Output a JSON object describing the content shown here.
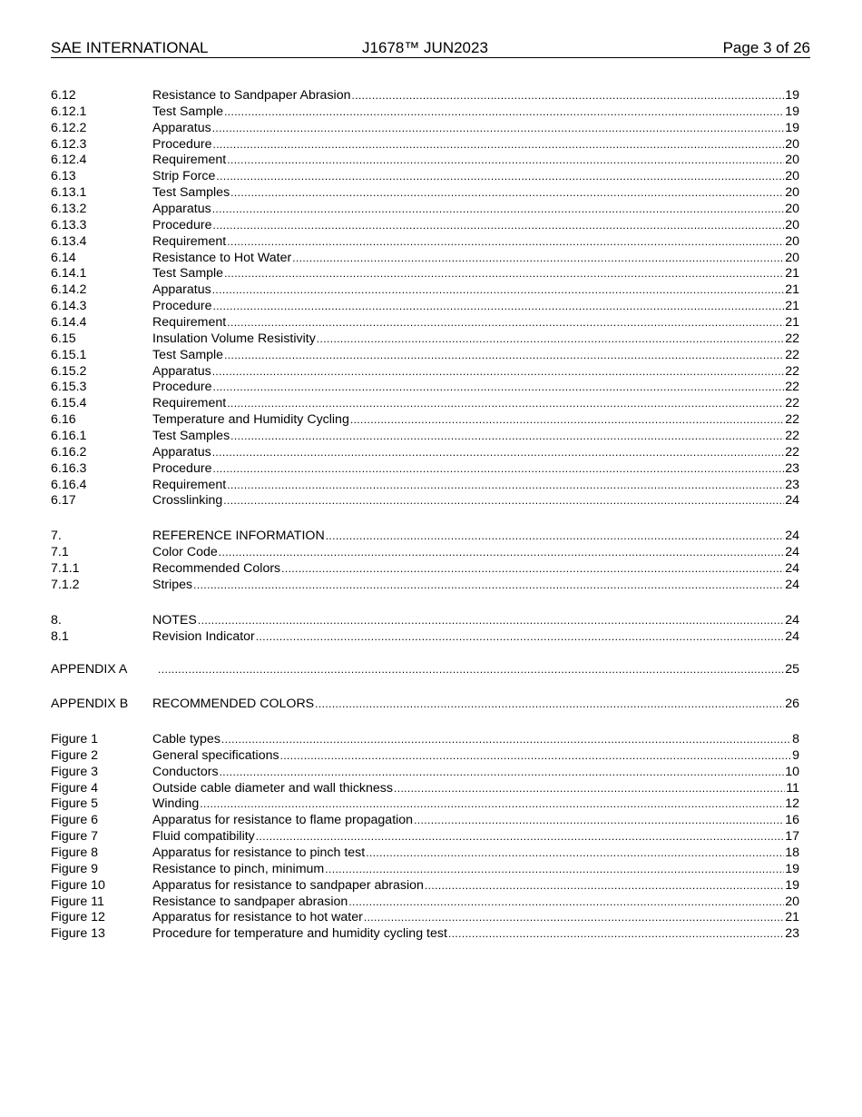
{
  "header": {
    "left": "SAE INTERNATIONAL",
    "center": "J1678™ JUN2023",
    "right": "Page 3 of 26"
  },
  "toc": [
    [
      {
        "num": "6.12",
        "title": "Resistance to Sandpaper Abrasion",
        "page": "19"
      },
      {
        "num": "6.12.1",
        "title": "Test Sample",
        "page": "19"
      },
      {
        "num": "6.12.2",
        "title": "Apparatus",
        "page": "19"
      },
      {
        "num": "6.12.3",
        "title": "Procedure",
        "page": "20"
      },
      {
        "num": "6.12.4",
        "title": "Requirement",
        "page": "20"
      },
      {
        "num": "6.13",
        "title": "Strip Force",
        "page": "20"
      },
      {
        "num": "6.13.1",
        "title": "Test Samples",
        "page": "20"
      },
      {
        "num": "6.13.2",
        "title": "Apparatus",
        "page": "20"
      },
      {
        "num": "6.13.3",
        "title": "Procedure",
        "page": "20"
      },
      {
        "num": "6.13.4",
        "title": "Requirement",
        "page": "20"
      },
      {
        "num": "6.14",
        "title": "Resistance to Hot Water",
        "page": "20"
      },
      {
        "num": "6.14.1",
        "title": "Test Sample",
        "page": "21"
      },
      {
        "num": "6.14.2",
        "title": "Apparatus",
        "page": "21"
      },
      {
        "num": "6.14.3",
        "title": "Procedure",
        "page": "21"
      },
      {
        "num": "6.14.4",
        "title": "Requirement",
        "page": "21"
      },
      {
        "num": "6.15",
        "title": "Insulation Volume Resistivity",
        "page": "22"
      },
      {
        "num": "6.15.1",
        "title": "Test Sample",
        "page": "22"
      },
      {
        "num": "6.15.2",
        "title": "Apparatus",
        "page": "22"
      },
      {
        "num": "6.15.3",
        "title": "Procedure",
        "page": "22"
      },
      {
        "num": "6.15.4",
        "title": "Requirement",
        "page": "22"
      },
      {
        "num": "6.16",
        "title": "Temperature and Humidity Cycling",
        "page": "22"
      },
      {
        "num": "6.16.1",
        "title": "Test Samples",
        "page": "22"
      },
      {
        "num": "6.16.2",
        "title": "Apparatus",
        "page": "22"
      },
      {
        "num": "6.16.3",
        "title": "Procedure",
        "page": "23"
      },
      {
        "num": "6.16.4",
        "title": "Requirement",
        "page": "23"
      },
      {
        "num": "6.17",
        "title": "Crosslinking",
        "page": "24"
      }
    ],
    [
      {
        "num": "7.",
        "title": "REFERENCE INFORMATION",
        "page": "24"
      },
      {
        "num": "7.1",
        "title": "Color Code",
        "page": "24"
      },
      {
        "num": "7.1.1",
        "title": "Recommended Colors",
        "page": "24"
      },
      {
        "num": "7.1.2",
        "title": "Stripes",
        "page": "24"
      }
    ],
    [
      {
        "num": "8.",
        "title": "NOTES",
        "page": "24"
      },
      {
        "num": "8.1",
        "title": "Revision Indicator",
        "page": "24"
      }
    ],
    [
      {
        "num": "APPENDIX A",
        "title": "",
        "page": "25"
      }
    ],
    [
      {
        "num": "APPENDIX B",
        "title": "RECOMMENDED COLORS",
        "page": "26"
      }
    ],
    [
      {
        "num": "Figure 1",
        "title": "Cable types",
        "page": "8"
      },
      {
        "num": "Figure 2",
        "title": "General specifications",
        "page": "9"
      },
      {
        "num": "Figure 3",
        "title": "Conductors",
        "page": "10"
      },
      {
        "num": "Figure 4",
        "title": "Outside cable diameter and wall thickness",
        "page": "11"
      },
      {
        "num": "Figure 5",
        "title": "Winding",
        "page": "12"
      },
      {
        "num": "Figure 6",
        "title": "Apparatus for resistance to flame propagation",
        "page": "16"
      },
      {
        "num": "Figure 7",
        "title": "Fluid compatibility",
        "page": "17"
      },
      {
        "num": "Figure 8",
        "title": "Apparatus for resistance to pinch test",
        "page": "18"
      },
      {
        "num": "Figure 9",
        "title": "Resistance to pinch, minimum",
        "page": "19"
      },
      {
        "num": "Figure 10",
        "title": "Apparatus for resistance to sandpaper abrasion",
        "page": "19"
      },
      {
        "num": "Figure 11",
        "title": "Resistance to sandpaper abrasion",
        "page": "20"
      },
      {
        "num": "Figure 12",
        "title": "Apparatus for resistance to hot water",
        "page": "21"
      },
      {
        "num": "Figure 13",
        "title": "Procedure for temperature and humidity cycling test",
        "page": "23"
      }
    ]
  ]
}
